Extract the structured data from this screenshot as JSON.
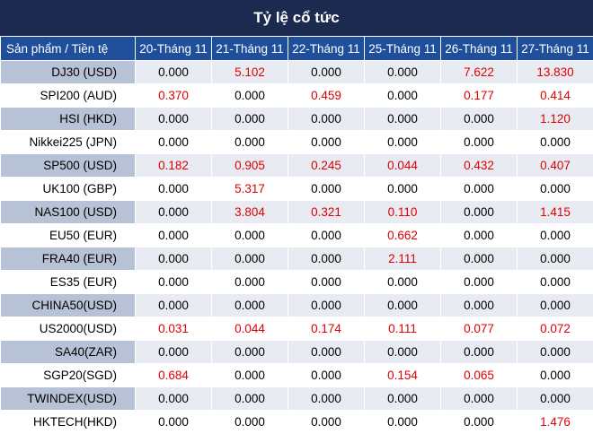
{
  "title": "Tỷ lệ cổ tức",
  "header": {
    "product": "Sản phẩm / Tiền tệ",
    "dates": [
      "20-Tháng 11",
      "21-Tháng 11",
      "22-Tháng 11",
      "25-Tháng 11",
      "26-Tháng 11",
      "27-Tháng 11"
    ]
  },
  "colors": {
    "title_bg": "#1b2a4e",
    "header_bg": "#1f4f9a",
    "nonzero_text": "#e00000"
  },
  "rows": [
    {
      "product": "DJ30 (USD)",
      "values": [
        "0.000",
        "5.102",
        "0.000",
        "0.000",
        "7.622",
        "13.830"
      ]
    },
    {
      "product": "SPI200 (AUD)",
      "values": [
        "0.370",
        "0.000",
        "0.459",
        "0.000",
        "0.177",
        "0.414"
      ]
    },
    {
      "product": "HSI (HKD)",
      "values": [
        "0.000",
        "0.000",
        "0.000",
        "0.000",
        "0.000",
        "1.120"
      ]
    },
    {
      "product": "Nikkei225 (JPN)",
      "values": [
        "0.000",
        "0.000",
        "0.000",
        "0.000",
        "0.000",
        "0.000"
      ]
    },
    {
      "product": "SP500 (USD)",
      "values": [
        "0.182",
        "0.905",
        "0.245",
        "0.044",
        "0.432",
        "0.407"
      ]
    },
    {
      "product": "UK100 (GBP)",
      "values": [
        "0.000",
        "5.317",
        "0.000",
        "0.000",
        "0.000",
        "0.000"
      ]
    },
    {
      "product": "NAS100 (USD)",
      "values": [
        "0.000",
        "3.804",
        "0.321",
        "0.110",
        "0.000",
        "1.415"
      ]
    },
    {
      "product": "EU50 (EUR)",
      "values": [
        "0.000",
        "0.000",
        "0.000",
        "0.662",
        "0.000",
        "0.000"
      ]
    },
    {
      "product": "FRA40 (EUR)",
      "values": [
        "0.000",
        "0.000",
        "0.000",
        "2.111",
        "0.000",
        "0.000"
      ]
    },
    {
      "product": "ES35 (EUR)",
      "values": [
        "0.000",
        "0.000",
        "0.000",
        "0.000",
        "0.000",
        "0.000"
      ]
    },
    {
      "product": "CHINA50(USD)",
      "values": [
        "0.000",
        "0.000",
        "0.000",
        "0.000",
        "0.000",
        "0.000"
      ]
    },
    {
      "product": "US2000(USD)",
      "values": [
        "0.031",
        "0.044",
        "0.174",
        "0.111",
        "0.077",
        "0.072"
      ]
    },
    {
      "product": "SA40(ZAR)",
      "values": [
        "0.000",
        "0.000",
        "0.000",
        "0.000",
        "0.000",
        "0.000"
      ]
    },
    {
      "product": "SGP20(SGD)",
      "values": [
        "0.684",
        "0.000",
        "0.000",
        "0.154",
        "0.065",
        "0.000"
      ]
    },
    {
      "product": "TWINDEX(USD)",
      "values": [
        "0.000",
        "0.000",
        "0.000",
        "0.000",
        "0.000",
        "0.000"
      ]
    },
    {
      "product": "HKTECH(HKD)",
      "values": [
        "0.000",
        "0.000",
        "0.000",
        "0.000",
        "0.000",
        "1.476"
      ]
    }
  ]
}
